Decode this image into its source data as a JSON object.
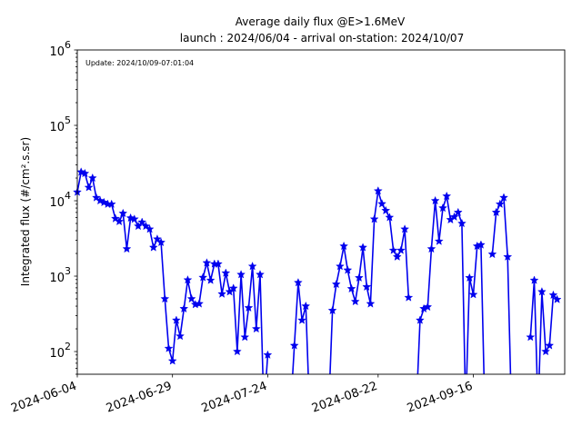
{
  "chart_data": {
    "type": "line",
    "title": "Average daily flux @E>1.6MeV",
    "subtitle": "launch : 2024/06/04 - arrival on-station: 2024/10/07",
    "annotation": "Update: 2024/10/09-07:01:04",
    "ylabel": "Integrated flux (#/cm².s.sr)",
    "yscale": "log",
    "ylim": [
      50,
      1000000
    ],
    "xlim": [
      "2024-06-04",
      "2024-10-10"
    ],
    "xticks": [
      "2024-06-04",
      "2024-06-29",
      "2024-07-24",
      "2024-08-22",
      "2024-09-16"
    ],
    "yticks": [
      {
        "value": 100,
        "mantissa": "10",
        "exp": "2"
      },
      {
        "value": 1000,
        "mantissa": "10",
        "exp": "3"
      },
      {
        "value": 10000,
        "mantissa": "10",
        "exp": "4"
      },
      {
        "value": 100000,
        "mantissa": "10",
        "exp": "5"
      },
      {
        "value": 1000000,
        "mantissa": "10",
        "exp": "6"
      }
    ],
    "grid": false,
    "series": [
      {
        "color": "#0000ee",
        "marker": "star",
        "points": [
          [
            "2024-06-04",
            13000
          ],
          [
            "2024-06-05",
            24000
          ],
          [
            "2024-06-06",
            23000
          ],
          [
            "2024-06-07",
            15000
          ],
          [
            "2024-06-08",
            20000
          ],
          [
            "2024-06-09",
            11000
          ],
          [
            "2024-06-10",
            10000
          ],
          [
            "2024-06-11",
            9500
          ],
          [
            "2024-06-12",
            9000
          ],
          [
            "2024-06-13",
            9000
          ],
          [
            "2024-06-14",
            5800
          ],
          [
            "2024-06-15",
            5300
          ],
          [
            "2024-06-16",
            6800
          ],
          [
            "2024-06-17",
            2300
          ],
          [
            "2024-06-18",
            5900
          ],
          [
            "2024-06-19",
            5700
          ],
          [
            "2024-06-20",
            4600
          ],
          [
            "2024-06-21",
            5200
          ],
          [
            "2024-06-22",
            4600
          ],
          [
            "2024-06-23",
            4200
          ],
          [
            "2024-06-24",
            2400
          ],
          [
            "2024-06-25",
            3100
          ],
          [
            "2024-06-26",
            2800
          ],
          [
            "2024-06-27",
            500
          ],
          [
            "2024-06-28",
            110
          ],
          [
            "2024-06-29",
            75
          ],
          [
            "2024-06-30",
            260
          ],
          [
            "2024-07-01",
            160
          ],
          [
            "2024-07-02",
            370
          ],
          [
            "2024-07-03",
            890
          ],
          [
            "2024-07-04",
            500
          ],
          [
            "2024-07-05",
            420
          ],
          [
            "2024-07-06",
            430
          ],
          [
            "2024-07-07",
            960
          ],
          [
            "2024-07-08",
            1500
          ],
          [
            "2024-07-09",
            880
          ],
          [
            "2024-07-10",
            1450
          ],
          [
            "2024-07-11",
            1450
          ],
          [
            "2024-07-12",
            580
          ],
          [
            "2024-07-13",
            1100
          ],
          [
            "2024-07-14",
            620
          ],
          [
            "2024-07-15",
            690
          ],
          [
            "2024-07-16",
            100
          ],
          [
            "2024-07-17",
            1050
          ],
          [
            "2024-07-18",
            155
          ],
          [
            "2024-07-19",
            380
          ],
          [
            "2024-07-20",
            1350
          ],
          [
            "2024-07-21",
            200
          ],
          [
            "2024-07-22",
            1050
          ],
          [
            "2024-07-23",
            0
          ],
          [
            "2024-07-24",
            90
          ],
          [
            "2024-07-25",
            null
          ],
          [
            "2024-07-26",
            null
          ],
          [
            "2024-07-27",
            null
          ],
          [
            "2024-07-28",
            null
          ],
          [
            "2024-07-29",
            null
          ],
          [
            "2024-07-30",
            0
          ],
          [
            "2024-07-31",
            120
          ],
          [
            "2024-08-01",
            820
          ],
          [
            "2024-08-02",
            260
          ],
          [
            "2024-08-03",
            400
          ],
          [
            "2024-08-04",
            0
          ],
          [
            "2024-08-05",
            null
          ],
          [
            "2024-08-06",
            null
          ],
          [
            "2024-08-07",
            null
          ],
          [
            "2024-08-08",
            null
          ],
          [
            "2024-08-09",
            0
          ],
          [
            "2024-08-10",
            350
          ],
          [
            "2024-08-11",
            780
          ],
          [
            "2024-08-12",
            1350
          ],
          [
            "2024-08-13",
            2500
          ],
          [
            "2024-08-14",
            1200
          ],
          [
            "2024-08-15",
            680
          ],
          [
            "2024-08-16",
            460
          ],
          [
            "2024-08-17",
            950
          ],
          [
            "2024-08-18",
            2400
          ],
          [
            "2024-08-19",
            720
          ],
          [
            "2024-08-20",
            430
          ],
          [
            "2024-08-21",
            5700
          ],
          [
            "2024-08-22",
            13500
          ],
          [
            "2024-08-23",
            9100
          ],
          [
            "2024-08-24",
            7400
          ],
          [
            "2024-08-25",
            6000
          ],
          [
            "2024-08-26",
            2200
          ],
          [
            "2024-08-27",
            1800
          ],
          [
            "2024-08-28",
            2200
          ],
          [
            "2024-08-29",
            4200
          ],
          [
            "2024-08-30",
            520
          ],
          [
            "2024-08-31",
            null
          ],
          [
            "2024-09-01",
            0
          ],
          [
            "2024-09-02",
            260
          ],
          [
            "2024-09-03",
            370
          ],
          [
            "2024-09-04",
            390
          ],
          [
            "2024-09-05",
            2300
          ],
          [
            "2024-09-06",
            10000
          ],
          [
            "2024-09-07",
            2900
          ],
          [
            "2024-09-08",
            8000
          ],
          [
            "2024-09-09",
            11500
          ],
          [
            "2024-09-10",
            5600
          ],
          [
            "2024-09-11",
            6100
          ],
          [
            "2024-09-12",
            7000
          ],
          [
            "2024-09-13",
            5000
          ],
          [
            "2024-09-14",
            0
          ],
          [
            "2024-09-15",
            950
          ],
          [
            "2024-09-16",
            570
          ],
          [
            "2024-09-17",
            2500
          ],
          [
            "2024-09-18",
            2600
          ],
          [
            "2024-09-19",
            0
          ],
          [
            "2024-09-20",
            null
          ],
          [
            "2024-09-21",
            1950
          ],
          [
            "2024-09-22",
            7000
          ],
          [
            "2024-09-23",
            9000
          ],
          [
            "2024-09-24",
            11000
          ],
          [
            "2024-09-25",
            1800
          ],
          [
            "2024-09-26",
            0
          ],
          [
            "2024-09-27",
            null
          ],
          [
            "2024-09-28",
            null
          ],
          [
            "2024-09-29",
            null
          ],
          [
            "2024-09-30",
            null
          ],
          [
            "2024-10-01",
            155
          ],
          [
            "2024-10-02",
            880
          ],
          [
            "2024-10-03",
            0
          ],
          [
            "2024-10-04",
            620
          ],
          [
            "2024-10-05",
            100
          ],
          [
            "2024-10-06",
            120
          ],
          [
            "2024-10-07",
            560
          ],
          [
            "2024-10-08",
            490
          ]
        ]
      }
    ]
  }
}
